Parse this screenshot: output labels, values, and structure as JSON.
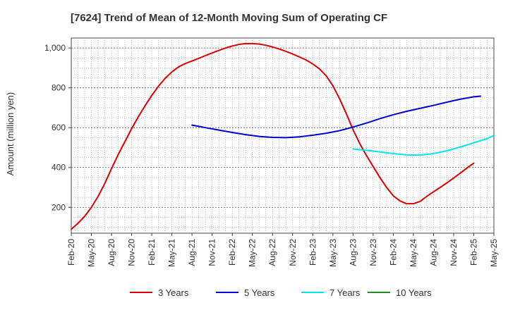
{
  "chart_data": {
    "type": "line",
    "title": "[7624]  Trend of Mean of 12-Month Moving Sum of Operating CF",
    "ylabel": "Amount (million yen)",
    "xlabel": "",
    "ylim": [
      70,
      1050
    ],
    "yticks": [
      200,
      400,
      600,
      800,
      1000
    ],
    "ytick_labels": [
      "200",
      "400",
      "600",
      "800",
      "1,000"
    ],
    "x_start": "2020-02",
    "x_end": "2025-05",
    "x_tick_labels": [
      "Feb-20",
      "May-20",
      "Aug-20",
      "Nov-20",
      "Feb-21",
      "May-21",
      "Aug-21",
      "Nov-21",
      "Feb-22",
      "May-22",
      "Aug-22",
      "Nov-22",
      "Feb-23",
      "May-23",
      "Aug-23",
      "Nov-23",
      "Feb-24",
      "May-24",
      "Aug-24",
      "Nov-24",
      "Feb-25",
      "May-25"
    ],
    "grid": true,
    "legend_position": "bottom",
    "series": [
      {
        "name": "3 Years",
        "color": "#dd0000",
        "points": [
          [
            "2020-02",
            90
          ],
          [
            "2020-03",
            120
          ],
          [
            "2020-04",
            155
          ],
          [
            "2020-05",
            200
          ],
          [
            "2020-06",
            255
          ],
          [
            "2020-07",
            320
          ],
          [
            "2020-08",
            395
          ],
          [
            "2020-09",
            465
          ],
          [
            "2020-10",
            530
          ],
          [
            "2020-11",
            595
          ],
          [
            "2020-12",
            655
          ],
          [
            "2021-01",
            710
          ],
          [
            "2021-02",
            762
          ],
          [
            "2021-03",
            808
          ],
          [
            "2021-04",
            848
          ],
          [
            "2021-05",
            880
          ],
          [
            "2021-06",
            905
          ],
          [
            "2021-07",
            922
          ],
          [
            "2021-08",
            935
          ],
          [
            "2021-09",
            948
          ],
          [
            "2021-10",
            962
          ],
          [
            "2021-11",
            975
          ],
          [
            "2021-12",
            988
          ],
          [
            "2022-01",
            1000
          ],
          [
            "2022-02",
            1010
          ],
          [
            "2022-03",
            1018
          ],
          [
            "2022-04",
            1022
          ],
          [
            "2022-05",
            1022
          ],
          [
            "2022-06",
            1020
          ],
          [
            "2022-07",
            1014
          ],
          [
            "2022-08",
            1005
          ],
          [
            "2022-09",
            995
          ],
          [
            "2022-10",
            983
          ],
          [
            "2022-11",
            970
          ],
          [
            "2022-12",
            955
          ],
          [
            "2023-01",
            940
          ],
          [
            "2023-02",
            920
          ],
          [
            "2023-03",
            895
          ],
          [
            "2023-04",
            860
          ],
          [
            "2023-05",
            810
          ],
          [
            "2023-06",
            745
          ],
          [
            "2023-07",
            670
          ],
          [
            "2023-08",
            590
          ],
          [
            "2023-09",
            520
          ],
          [
            "2023-10",
            460
          ],
          [
            "2023-11",
            405
          ],
          [
            "2023-12",
            350
          ],
          [
            "2024-01",
            300
          ],
          [
            "2024-02",
            258
          ],
          [
            "2024-03",
            232
          ],
          [
            "2024-04",
            218
          ],
          [
            "2024-05",
            218
          ],
          [
            "2024-06",
            230
          ],
          [
            "2024-07",
            255
          ],
          [
            "2024-08",
            278
          ],
          [
            "2024-09",
            300
          ],
          [
            "2024-10",
            323
          ],
          [
            "2024-11",
            347
          ],
          [
            "2024-12",
            372
          ],
          [
            "2025-01",
            398
          ],
          [
            "2025-02",
            422
          ]
        ]
      },
      {
        "name": "5 Years",
        "color": "#0000cc",
        "points": [
          [
            "2021-08",
            613
          ],
          [
            "2021-10",
            600
          ],
          [
            "2021-12",
            588
          ],
          [
            "2022-02",
            576
          ],
          [
            "2022-04",
            565
          ],
          [
            "2022-06",
            556
          ],
          [
            "2022-08",
            551
          ],
          [
            "2022-10",
            550
          ],
          [
            "2022-12",
            554
          ],
          [
            "2023-02",
            562
          ],
          [
            "2023-04",
            572
          ],
          [
            "2023-06",
            585
          ],
          [
            "2023-08",
            603
          ],
          [
            "2023-10",
            623
          ],
          [
            "2023-12",
            645
          ],
          [
            "2024-02",
            665
          ],
          [
            "2024-04",
            682
          ],
          [
            "2024-06",
            697
          ],
          [
            "2024-08",
            712
          ],
          [
            "2024-10",
            728
          ],
          [
            "2024-12",
            743
          ],
          [
            "2025-02",
            755
          ],
          [
            "2025-03",
            758
          ]
        ]
      },
      {
        "name": "7 Years",
        "color": "#00e5ee",
        "points": [
          [
            "2023-08",
            493
          ],
          [
            "2023-10",
            486
          ],
          [
            "2023-12",
            478
          ],
          [
            "2024-02",
            470
          ],
          [
            "2024-04",
            463
          ],
          [
            "2024-06",
            462
          ],
          [
            "2024-08",
            470
          ],
          [
            "2024-10",
            484
          ],
          [
            "2024-12",
            503
          ],
          [
            "2025-02",
            524
          ],
          [
            "2025-04",
            545
          ],
          [
            "2025-05",
            561
          ]
        ]
      },
      {
        "name": "10 Years",
        "color": "#228b22",
        "points": []
      }
    ]
  }
}
